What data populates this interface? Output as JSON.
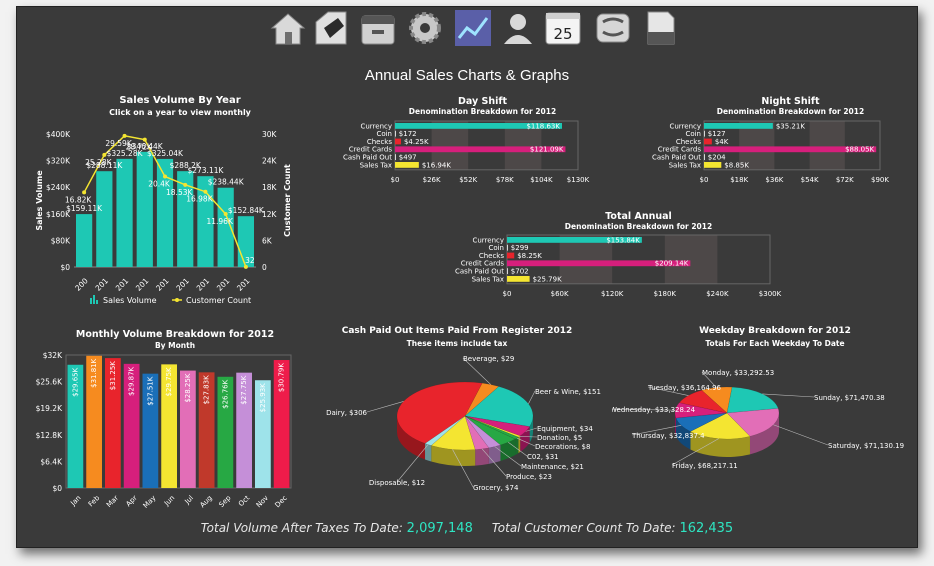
{
  "page_title": "Annual Sales Charts & Graphs",
  "toolbar": [
    {
      "icon": "home-icon"
    },
    {
      "icon": "tag-icon"
    },
    {
      "icon": "register-icon"
    },
    {
      "icon": "gear-icon"
    },
    {
      "icon": "line-chart-icon"
    },
    {
      "icon": "user-icon"
    },
    {
      "icon": "calendar-icon",
      "text": "25"
    },
    {
      "icon": "database-icon"
    },
    {
      "icon": "document-icon"
    }
  ],
  "footer": {
    "volume_label": "Total Volume After Taxes To Date:",
    "volume_value": "2,097,148",
    "count_label": "Total Customer Count To Date:",
    "count_value": "162,435"
  },
  "colors": {
    "teal": "#1ec8b4",
    "red": "#e8242c",
    "magenta": "#d61f7c",
    "yellow": "#f4e531",
    "white": "#ffffff",
    "background": "#3a3a3a",
    "month_colors": [
      "#1ec8b4",
      "#f68b1f",
      "#e8242c",
      "#d61f7c",
      "#1a6fb8",
      "#f4e531",
      "#e26eb7",
      "#c0392b",
      "#27a844",
      "#c58fd8",
      "#9ee3ea",
      "#ee1c4a"
    ]
  },
  "chart_data": [
    {
      "id": "sales_by_year",
      "type": "bar",
      "title": "Sales Volume By Year",
      "subtitle": "Click on a year to view monthly",
      "ylabel": "Sales Volume",
      "y2label": "Customer Count",
      "categories": [
        "200",
        "201",
        "201",
        "201",
        "201",
        "201",
        "201",
        "201",
        "201"
      ],
      "series": [
        {
          "name": "Sales Volume",
          "kind": "bar",
          "values": [
            159110,
            288110,
            325280,
            346440,
            325040,
            288200,
            273110,
            238440,
            152840
          ]
        },
        {
          "name": "Customer Count",
          "kind": "line",
          "axis": "right",
          "values": [
            16820,
            25280,
            29590,
            28720,
            20400,
            18530,
            16980,
            11960,
            32
          ]
        }
      ],
      "bar_labels": [
        "$159.11K",
        "$288.11K",
        "$325.28K",
        "$346.44K",
        "$325.04K",
        "$288.2K",
        "$273.11K",
        "$238.44K",
        "$152.84K"
      ],
      "line_labels": [
        "16.82K",
        "25.28K",
        "29.59K",
        "28.72K",
        "20.4K",
        "18.53K",
        "16.98K",
        "11.96K",
        "32"
      ],
      "y_ticks": [
        "$0",
        "$80K",
        "$160K",
        "$240K",
        "$320K",
        "$400K"
      ],
      "y2_ticks": [
        "0",
        "6K",
        "12K",
        "18K",
        "24K",
        "30K"
      ],
      "ylim": [
        0,
        400000
      ],
      "y2lim": [
        0,
        30000
      ],
      "legend": [
        "Sales Volume",
        "Customer Count"
      ],
      "legend_position": "bottom"
    },
    {
      "id": "day_shift",
      "type": "bar",
      "orientation": "horizontal",
      "title": "Day Shift",
      "subtitle": "Denomination Breakdown for 2012",
      "categories": [
        "Currency",
        "Coin",
        "Checks",
        "Credit Cards",
        "Cash Paid Out",
        "Sales Tax"
      ],
      "values": [
        118630,
        172,
        4250,
        121090,
        497,
        16940
      ],
      "labels": [
        "$118.63K",
        "$172",
        "$4.25K",
        "$121.09K",
        "$497",
        "$16.94K"
      ],
      "x_ticks": [
        "$0",
        "$26K",
        "$52K",
        "$78K",
        "$104K",
        "$130K"
      ],
      "xlim": [
        0,
        130000
      ]
    },
    {
      "id": "night_shift",
      "type": "bar",
      "orientation": "horizontal",
      "title": "Night Shift",
      "subtitle": "Denomination Breakdown for 2012",
      "categories": [
        "Currency",
        "Coin",
        "Checks",
        "Credit Cards",
        "Cash Paid Out",
        "Sales Tax"
      ],
      "values": [
        35210,
        127,
        4000,
        88050,
        204,
        8850
      ],
      "labels": [
        "$35.21K",
        "$127",
        "$4K",
        "$88.05K",
        "$204",
        "$8.85K"
      ],
      "x_ticks": [
        "$0",
        "$18K",
        "$36K",
        "$54K",
        "$72K",
        "$90K"
      ],
      "xlim": [
        0,
        90000
      ]
    },
    {
      "id": "total_annual",
      "type": "bar",
      "orientation": "horizontal",
      "title": "Total Annual",
      "subtitle": "Denomination Breakdown for 2012",
      "categories": [
        "Currency",
        "Coin",
        "Checks",
        "Credit Cards",
        "Cash Paid Out",
        "Sales Tax"
      ],
      "values": [
        153840,
        299,
        8250,
        209140,
        702,
        25790
      ],
      "labels": [
        "$153.84K",
        "$299",
        "$8.25K",
        "$209.14K",
        "$702",
        "$25.79K"
      ],
      "x_ticks": [
        "$0",
        "$60K",
        "$120K",
        "$180K",
        "$240K",
        "$300K"
      ],
      "xlim": [
        0,
        300000
      ]
    },
    {
      "id": "monthly_volume",
      "type": "bar",
      "title": "Monthly Volume Breakdown for 2012",
      "subtitle": "By Month",
      "categories": [
        "Jan",
        "Feb",
        "Mar",
        "Apr",
        "May",
        "Jun",
        "Jul",
        "Aug",
        "Sep",
        "Oct",
        "Nov",
        "Dec"
      ],
      "values": [
        29650,
        31810,
        31250,
        29870,
        27510,
        29750,
        28250,
        27830,
        26760,
        27750,
        25930,
        30790
      ],
      "labels": [
        "$29.65K",
        "$31.81K",
        "$31.25K",
        "$29.87K",
        "$27.51K",
        "$29.75K",
        "$28.25K",
        "$27.83K",
        "$26.76K",
        "$27.75K",
        "$25.93K",
        "$30.79K"
      ],
      "y_ticks": [
        "$0",
        "$6.4K",
        "$12.8K",
        "$19.2K",
        "$25.6K",
        "$32K"
      ],
      "ylim": [
        0,
        32000
      ]
    },
    {
      "id": "cash_paid_out",
      "type": "pie",
      "title": "Cash Paid Out Items Paid From Register 2012",
      "subtitle": "These items include tax",
      "slices": [
        {
          "label": "Dairy, $306",
          "value": 306,
          "color": "#e8242c"
        },
        {
          "label": "Beverage, $29",
          "value": 29,
          "color": "#f68b1f"
        },
        {
          "label": "Beer & Wine, $151",
          "value": 151,
          "color": "#1ec8b4"
        },
        {
          "label": "Equipment, $34",
          "value": 34,
          "color": "#d61f7c"
        },
        {
          "label": "Donation, $5",
          "value": 5,
          "color": "#f4e531"
        },
        {
          "label": "Decorations, $8",
          "value": 8,
          "color": "#27a844"
        },
        {
          "label": "C02, $31",
          "value": 31,
          "color": "#27a844"
        },
        {
          "label": "Maintenance, $21",
          "value": 21,
          "color": "#c58fd8"
        },
        {
          "label": "Produce, $23",
          "value": 23,
          "color": "#e26eb7"
        },
        {
          "label": "Grocery, $74",
          "value": 74,
          "color": "#f4e531"
        },
        {
          "label": "Disposable, $12",
          "value": 12,
          "color": "#9ee3ea"
        }
      ]
    },
    {
      "id": "weekday",
      "type": "pie",
      "title": "Weekday Breakdown for 2012",
      "subtitle": "Totals For Each Weekday To Date",
      "slices": [
        {
          "label": "Monday, $33,292.53",
          "value": 33292.53,
          "color": "#f68b1f"
        },
        {
          "label": "Sunday, $71,470.38",
          "value": 71470.38,
          "color": "#1ec8b4"
        },
        {
          "label": "Saturday, $71,130.19",
          "value": 71130.19,
          "color": "#e26eb7"
        },
        {
          "label": "Friday, $68,217.11",
          "value": 68217.11,
          "color": "#f4e531"
        },
        {
          "label": "Thursday, $32,837.4",
          "value": 32837.4,
          "color": "#1a6fb8"
        },
        {
          "label": "Wednesday, $33,328.24",
          "value": 33328.24,
          "color": "#d61f7c"
        },
        {
          "label": "Tuesday, $36,164.96",
          "value": 36164.96,
          "color": "#e8242c"
        }
      ]
    }
  ]
}
